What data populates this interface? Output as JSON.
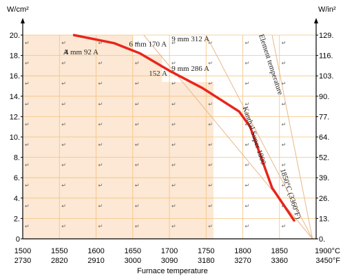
{
  "chart_data": {
    "type": "line",
    "title": "",
    "xlabel": "Furnace temperature",
    "ylabel_left": "W/cm²",
    "ylabel_right": "W/in²",
    "xlim": [
      1500,
      1900
    ],
    "ylim": [
      0,
      20
    ],
    "x_ticks": [
      1500,
      1550,
      1600,
      1650,
      1700,
      1750,
      1800,
      1850,
      1900
    ],
    "x_tick_labels_c": [
      "1500",
      "1550",
      "1600",
      "1650",
      "1700",
      "1750",
      "1800",
      "1850",
      "1900°C"
    ],
    "x_tick_labels_f": [
      "2730",
      "2820",
      "2910",
      "3000",
      "3090",
      "3180",
      "3270",
      "3360",
      "3450°F"
    ],
    "y_ticks_left": [
      0,
      2,
      4,
      6,
      8,
      10,
      12,
      14,
      16,
      18,
      20
    ],
    "y_tick_labels_left": [
      "0",
      "2.",
      "4.",
      "6.",
      "8.",
      "10.",
      "12.",
      "14.",
      "16.",
      "18.",
      "20."
    ],
    "y_tick_labels_right": [
      "0.",
      "13.",
      "26.",
      "39.",
      "52.",
      "64.",
      "77.",
      "90.",
      "103.",
      "116.",
      "129."
    ],
    "grid": true,
    "series": [
      {
        "name": "Kanthal Super 1900",
        "color": "#e8251c",
        "x": [
          1570,
          1625,
          1660,
          1700,
          1745,
          1795,
          1810,
          1840,
          1870
        ],
        "y": [
          20,
          19.2,
          18.2,
          16.5,
          14.8,
          12.5,
          11.0,
          5.0,
          1.8
        ]
      }
    ],
    "element_temperature_lines": [
      {
        "x": [
          1665,
          1895
        ],
        "y": [
          20,
          0
        ]
      },
      {
        "x": [
          1750,
          1895
        ],
        "y": [
          20,
          0
        ]
      },
      {
        "x": [
          1840,
          1895
        ],
        "y": [
          20,
          0
        ]
      }
    ],
    "annotations": [
      {
        "text": "4 mm  92 A",
        "x": 1557,
        "y": 18.1
      },
      {
        "text": "6 mm  170 A",
        "x": 1645,
        "y": 18.9
      },
      {
        "text": "9 mm  312 A",
        "x": 1703,
        "y": 19.4
      },
      {
        "text": "9 mm  286 A",
        "x": 1703,
        "y": 16.5
      },
      {
        "text": "Element temperature",
        "x": 1822,
        "y": 20.0,
        "rotate": 72
      },
      {
        "text": "Kanthal Super 1900",
        "x": 1800,
        "y": 12.9,
        "rotate": 72
      },
      {
        "text": "1850°C (3360°F)",
        "x": 1851,
        "y": 6.8,
        "rotate": 72
      },
      {
        "text": "A",
        "x": 1555,
        "y": 18.1
      },
      {
        "text": "152 A",
        "x": 1672,
        "y": 16.0
      }
    ],
    "shaded_region_color": "#fce8d4",
    "grid_color": "#f3c27e"
  }
}
